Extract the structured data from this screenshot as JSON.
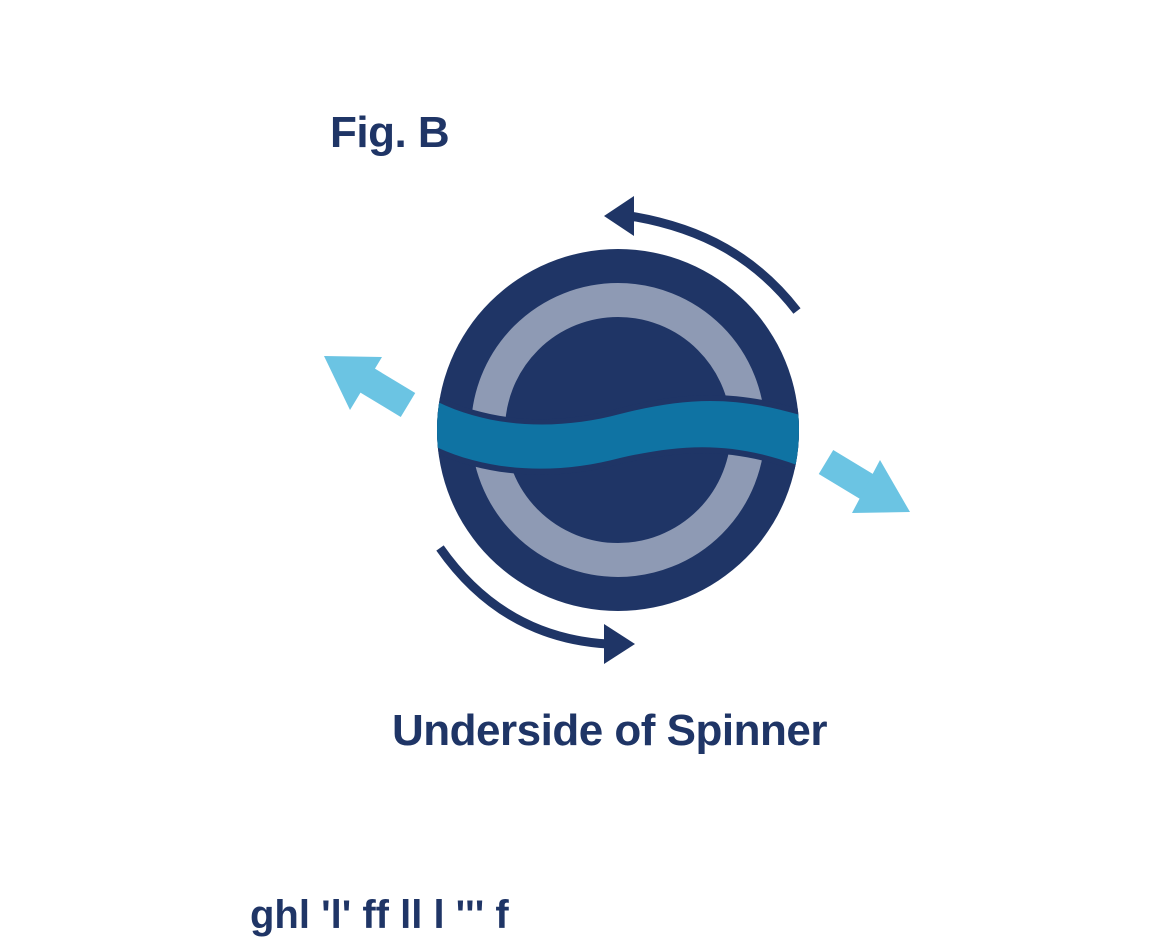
{
  "figure": {
    "label": "Fig. B",
    "caption": "Underside of Spinner",
    "cutoff_text": "ghl 'l' ff ll l ''' f"
  },
  "colors": {
    "navy": "#1f3566",
    "ring": "#8e9ab4",
    "band": "#0f73a3",
    "flow_arrow": "#6bc4e3"
  },
  "icons": {
    "rotation_arrows": "curved-arrow",
    "outflow_arrows": "arrow"
  }
}
